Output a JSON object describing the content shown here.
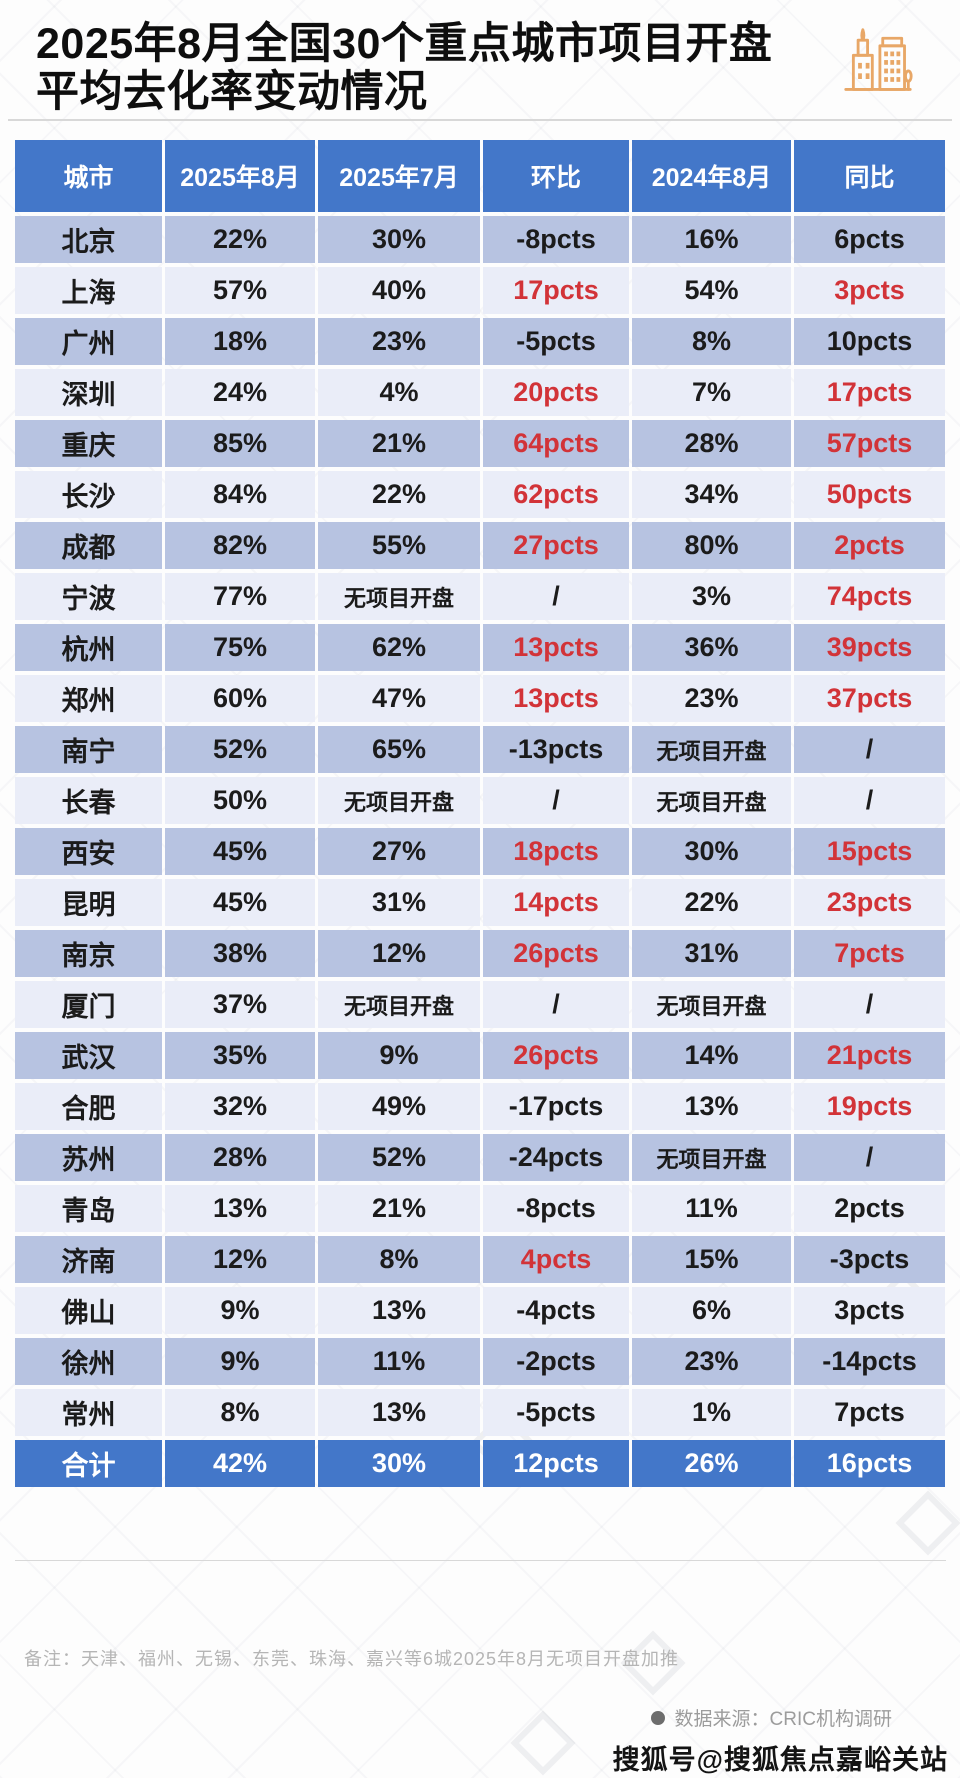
{
  "title": {
    "line1": "2025年8月全国30个重点城市项目开盘",
    "line2": "平均去化率变动情况"
  },
  "footer": {
    "note": "备注：天津、福州、无锡、东莞、珠海、嘉兴等6城2025年8月无项目开盘加推",
    "source": "数据来源：CRIC机构调研",
    "sohu_watermark": "搜狐号@搜狐焦点嘉峪关站"
  },
  "colors": {
    "header-blue": "#4377c9",
    "total-blue": "#4377c9",
    "row-dark": "#b7c3e1",
    "row-light": "#eaedf8",
    "red": "#d23338",
    "ink": "#1b1b1b",
    "note-gray": "#b5b5b5",
    "source-gray": "#9c9c9c",
    "divider-gray": "#d8d8d8",
    "icon-orange": "#e8a767"
  },
  "chart_data": {
    "type": "table",
    "title": "2025年8月全国30个重点城市项目开盘平均去化率变动情况",
    "columns": [
      "城市",
      "2025年8月",
      "2025年7月",
      "环比",
      "2024年8月",
      "同比"
    ],
    "no_opening_label": "无项目开盘",
    "rows": [
      {
        "city": "北京",
        "aug2025": "22%",
        "jul2025": "30%",
        "mom": "-8pcts",
        "mom_red": false,
        "aug2024": "16%",
        "yoy": "6pcts",
        "yoy_red": false
      },
      {
        "city": "上海",
        "aug2025": "57%",
        "jul2025": "40%",
        "mom": "17pcts",
        "mom_red": true,
        "aug2024": "54%",
        "yoy": "3pcts",
        "yoy_red": true
      },
      {
        "city": "广州",
        "aug2025": "18%",
        "jul2025": "23%",
        "mom": "-5pcts",
        "mom_red": false,
        "aug2024": "8%",
        "yoy": "10pcts",
        "yoy_red": false
      },
      {
        "city": "深圳",
        "aug2025": "24%",
        "jul2025": "4%",
        "mom": "20pcts",
        "mom_red": true,
        "aug2024": "7%",
        "yoy": "17pcts",
        "yoy_red": true
      },
      {
        "city": "重庆",
        "aug2025": "85%",
        "jul2025": "21%",
        "mom": "64pcts",
        "mom_red": true,
        "aug2024": "28%",
        "yoy": "57pcts",
        "yoy_red": true
      },
      {
        "city": "长沙",
        "aug2025": "84%",
        "jul2025": "22%",
        "mom": "62pcts",
        "mom_red": true,
        "aug2024": "34%",
        "yoy": "50pcts",
        "yoy_red": true
      },
      {
        "city": "成都",
        "aug2025": "82%",
        "jul2025": "55%",
        "mom": "27pcts",
        "mom_red": true,
        "aug2024": "80%",
        "yoy": "2pcts",
        "yoy_red": true
      },
      {
        "city": "宁波",
        "aug2025": "77%",
        "jul2025": "无项目开盘",
        "mom": "/",
        "mom_red": false,
        "aug2024": "3%",
        "yoy": "74pcts",
        "yoy_red": true
      },
      {
        "city": "杭州",
        "aug2025": "75%",
        "jul2025": "62%",
        "mom": "13pcts",
        "mom_red": true,
        "aug2024": "36%",
        "yoy": "39pcts",
        "yoy_red": true
      },
      {
        "city": "郑州",
        "aug2025": "60%",
        "jul2025": "47%",
        "mom": "13pcts",
        "mom_red": true,
        "aug2024": "23%",
        "yoy": "37pcts",
        "yoy_red": true
      },
      {
        "city": "南宁",
        "aug2025": "52%",
        "jul2025": "65%",
        "mom": "-13pcts",
        "mom_red": false,
        "aug2024": "无项目开盘",
        "yoy": "/",
        "yoy_red": false
      },
      {
        "city": "长春",
        "aug2025": "50%",
        "jul2025": "无项目开盘",
        "mom": "/",
        "mom_red": false,
        "aug2024": "无项目开盘",
        "yoy": "/",
        "yoy_red": false
      },
      {
        "city": "西安",
        "aug2025": "45%",
        "jul2025": "27%",
        "mom": "18pcts",
        "mom_red": true,
        "aug2024": "30%",
        "yoy": "15pcts",
        "yoy_red": true
      },
      {
        "city": "昆明",
        "aug2025": "45%",
        "jul2025": "31%",
        "mom": "14pcts",
        "mom_red": true,
        "aug2024": "22%",
        "yoy": "23pcts",
        "yoy_red": true
      },
      {
        "city": "南京",
        "aug2025": "38%",
        "jul2025": "12%",
        "mom": "26pcts",
        "mom_red": true,
        "aug2024": "31%",
        "yoy": "7pcts",
        "yoy_red": true
      },
      {
        "city": "厦门",
        "aug2025": "37%",
        "jul2025": "无项目开盘",
        "mom": "/",
        "mom_red": false,
        "aug2024": "无项目开盘",
        "yoy": "/",
        "yoy_red": false
      },
      {
        "city": "武汉",
        "aug2025": "35%",
        "jul2025": "9%",
        "mom": "26pcts",
        "mom_red": true,
        "aug2024": "14%",
        "yoy": "21pcts",
        "yoy_red": true
      },
      {
        "city": "合肥",
        "aug2025": "32%",
        "jul2025": "49%",
        "mom": "-17pcts",
        "mom_red": false,
        "aug2024": "13%",
        "yoy": "19pcts",
        "yoy_red": true
      },
      {
        "city": "苏州",
        "aug2025": "28%",
        "jul2025": "52%",
        "mom": "-24pcts",
        "mom_red": false,
        "aug2024": "无项目开盘",
        "yoy": "/",
        "yoy_red": false
      },
      {
        "city": "青岛",
        "aug2025": "13%",
        "jul2025": "21%",
        "mom": "-8pcts",
        "mom_red": false,
        "aug2024": "11%",
        "yoy": "2pcts",
        "yoy_red": false
      },
      {
        "city": "济南",
        "aug2025": "12%",
        "jul2025": "8%",
        "mom": "4pcts",
        "mom_red": true,
        "aug2024": "15%",
        "yoy": "-3pcts",
        "yoy_red": false
      },
      {
        "city": "佛山",
        "aug2025": "9%",
        "jul2025": "13%",
        "mom": "-4pcts",
        "mom_red": false,
        "aug2024": "6%",
        "yoy": "3pcts",
        "yoy_red": false
      },
      {
        "city": "徐州",
        "aug2025": "9%",
        "jul2025": "11%",
        "mom": "-2pcts",
        "mom_red": false,
        "aug2024": "23%",
        "yoy": "-14pcts",
        "yoy_red": false
      },
      {
        "city": "常州",
        "aug2025": "8%",
        "jul2025": "13%",
        "mom": "-5pcts",
        "mom_red": false,
        "aug2024": "1%",
        "yoy": "7pcts",
        "yoy_red": false
      }
    ],
    "total": {
      "city": "合计",
      "aug2025": "42%",
      "jul2025": "30%",
      "mom": "12pcts",
      "aug2024": "26%",
      "yoy": "16pcts"
    },
    "note": "备注：天津、福州、无锡、东莞、珠海、嘉兴等6城2025年8月无项目开盘加推",
    "source": "数据来源：CRIC机构调研"
  }
}
